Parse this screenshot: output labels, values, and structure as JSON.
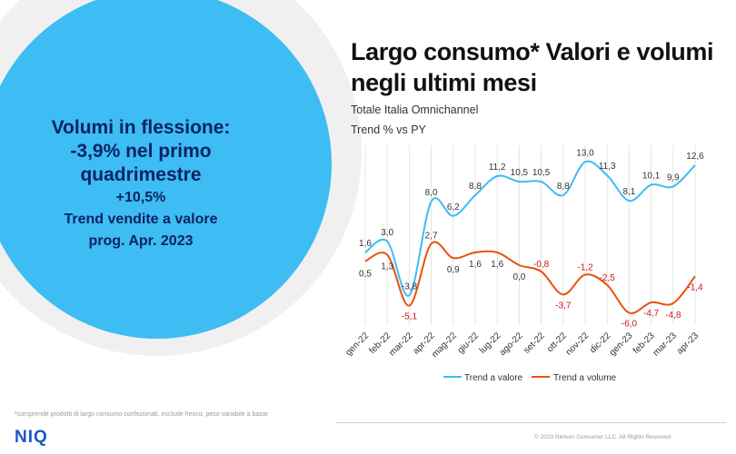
{
  "left_panel": {
    "headline": "Volumi in flessione:",
    "metric_line": "-3,9% nel primo",
    "period_line": "quadrimestre",
    "value_change": "+10,5%",
    "value_caption": "Trend vendite a valore",
    "period_caption": "prog. Apr. 2023"
  },
  "header": {
    "title_line1": "Largo consumo* Valori e volumi",
    "title_line2": "negli ultimi mesi",
    "subtitle": "Totale Italia Omnichannel",
    "trend_label": "Trend  % vs PY"
  },
  "footer": {
    "footnote": "*comprende prodotti di largo consumo confezionati, esclude fresco, peso variabile a bazar",
    "logo": "NIQ",
    "copyright": "© 2023  Nielsen Consumer LLC. All Rights Reserved."
  },
  "colors": {
    "valore": "#3ebcf4",
    "volume": "#e8520f",
    "volume_label_negative": "#d0141c",
    "circle": "#3ebcf4",
    "circle_text": "#0a2463"
  },
  "chart_data": {
    "type": "line",
    "title": "Largo consumo* Valori e volumi negli ultimi mesi",
    "ylabel": "Trend % vs PY",
    "categories": [
      "gen-22",
      "feb-22",
      "mar-22",
      "apr-22",
      "mag-22",
      "giu-22",
      "lug-22",
      "ago-22",
      "set-22",
      "ott-22",
      "nov-22",
      "dic-22",
      "gen-23",
      "feb-23",
      "mar-23",
      "apr-23"
    ],
    "series": [
      {
        "name": "Trend a valore",
        "values": [
          1.6,
          3.0,
          -3.8,
          8.0,
          6.2,
          8.8,
          11.2,
          10.5,
          10.5,
          8.8,
          13.0,
          11.3,
          8.1,
          10.1,
          9.9,
          12.6
        ],
        "labels": [
          "1,6",
          "3,0",
          "-3,8",
          "8,0",
          "6,2",
          "8,8",
          "11,2",
          "10,5",
          "10,5",
          "8,8",
          "13,0",
          "11,3",
          "8,1",
          "10,1",
          "9,9",
          "12,6"
        ]
      },
      {
        "name": "Trend a volume",
        "values": [
          0.5,
          1.3,
          -5.1,
          2.7,
          0.9,
          1.6,
          1.6,
          0.0,
          -0.8,
          -3.7,
          -1.2,
          -2.5,
          -6.0,
          -4.7,
          -4.8,
          -1.4
        ],
        "labels": [
          "0,5",
          "1,3",
          "-5,1",
          "2,7",
          "0,9",
          "1,6",
          "1,6",
          "0,0",
          "-0,8",
          "-3,7",
          "-1,2",
          "-2,5",
          "-6,0",
          "-4,7",
          "-4,8",
          "-1,4"
        ]
      }
    ],
    "ylim": [
      -8,
      16
    ],
    "grid": true,
    "legend": "bottom"
  }
}
